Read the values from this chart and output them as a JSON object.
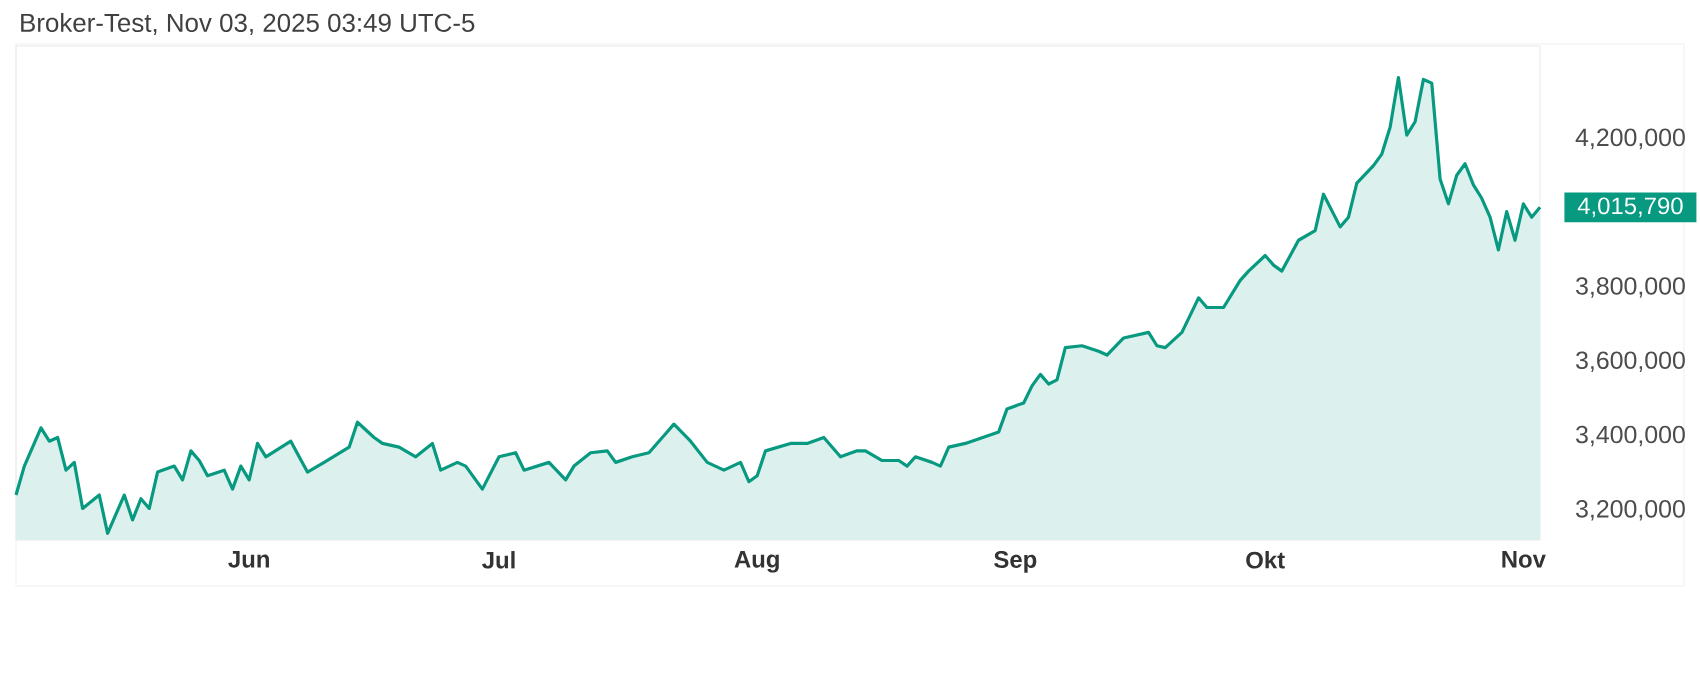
{
  "chart_data": {
    "type": "area",
    "title": "Broker-Test, Nov 03, 2025 03:49 UTC-5",
    "color": "#089981",
    "marker": "none",
    "line_style": "solid",
    "grid": false,
    "x": [
      "2025-05-04",
      "2025-05-05",
      "2025-05-07",
      "2025-05-08",
      "2025-05-09",
      "2025-05-10",
      "2025-05-11",
      "2025-05-12",
      "2025-05-14",
      "2025-05-15",
      "2025-05-17",
      "2025-05-18",
      "2025-05-19",
      "2025-05-20",
      "2025-05-21",
      "2025-05-23",
      "2025-05-24",
      "2025-05-25",
      "2025-05-26",
      "2025-05-27",
      "2025-05-29",
      "2025-05-30",
      "2025-05-31",
      "2025-06-01",
      "2025-06-02",
      "2025-06-03",
      "2025-06-06",
      "2025-06-07",
      "2025-06-08",
      "2025-06-10",
      "2025-06-13",
      "2025-06-14",
      "2025-06-16",
      "2025-06-17",
      "2025-06-19",
      "2025-06-21",
      "2025-06-23",
      "2025-06-24",
      "2025-06-26",
      "2025-06-27",
      "2025-06-29",
      "2025-07-01",
      "2025-07-03",
      "2025-07-04",
      "2025-07-07",
      "2025-07-09",
      "2025-07-10",
      "2025-07-12",
      "2025-07-14",
      "2025-07-15",
      "2025-07-17",
      "2025-07-19",
      "2025-07-21",
      "2025-07-22",
      "2025-07-24",
      "2025-07-26",
      "2025-07-28",
      "2025-07-30",
      "2025-07-31",
      "2025-08-01",
      "2025-08-02",
      "2025-08-05",
      "2025-08-07",
      "2025-08-09",
      "2025-08-11",
      "2025-08-13",
      "2025-08-14",
      "2025-08-16",
      "2025-08-18",
      "2025-08-19",
      "2025-08-20",
      "2025-08-22",
      "2025-08-23",
      "2025-08-24",
      "2025-08-26",
      "2025-08-30",
      "2025-08-31",
      "2025-09-02",
      "2025-09-03",
      "2025-09-04",
      "2025-09-05",
      "2025-09-06",
      "2025-09-07",
      "2025-09-09",
      "2025-09-11",
      "2025-09-12",
      "2025-09-14",
      "2025-09-17",
      "2025-09-18",
      "2025-09-19",
      "2025-09-21",
      "2025-09-23",
      "2025-09-24",
      "2025-09-26",
      "2025-09-28",
      "2025-09-29",
      "2025-10-01",
      "2025-10-02",
      "2025-10-03",
      "2025-10-05",
      "2025-10-07",
      "2025-10-08",
      "2025-10-10",
      "2025-10-11",
      "2025-10-12",
      "2025-10-14",
      "2025-10-15",
      "2025-10-16",
      "2025-10-17",
      "2025-10-18",
      "2025-10-19",
      "2025-10-20",
      "2025-10-21",
      "2025-10-22",
      "2025-10-23",
      "2025-10-24",
      "2025-10-25",
      "2025-10-26",
      "2025-10-27",
      "2025-10-28",
      "2025-10-29",
      "2025-10-30",
      "2025-10-31",
      "2025-11-01",
      "2025-11-02",
      "2025-11-03"
    ],
    "values": [
      3241000,
      3319000,
      3422000,
      3386000,
      3396000,
      3308000,
      3329000,
      3205000,
      3241000,
      3138000,
      3241000,
      3174000,
      3231000,
      3205000,
      3303000,
      3319000,
      3282000,
      3360000,
      3334000,
      3293000,
      3308000,
      3257000,
      3319000,
      3282000,
      3380000,
      3344000,
      3386000,
      3344000,
      3303000,
      3329000,
      3370000,
      3437000,
      3396000,
      3380000,
      3370000,
      3344000,
      3380000,
      3308000,
      3329000,
      3319000,
      3257000,
      3344000,
      3355000,
      3308000,
      3329000,
      3282000,
      3319000,
      3355000,
      3360000,
      3329000,
      3344000,
      3355000,
      3406000,
      3432000,
      3386000,
      3329000,
      3308000,
      3329000,
      3277000,
      3293000,
      3360000,
      3380000,
      3380000,
      3396000,
      3344000,
      3360000,
      3360000,
      3334000,
      3334000,
      3319000,
      3344000,
      3329000,
      3319000,
      3370000,
      3380000,
      3411000,
      3473000,
      3489000,
      3535000,
      3566000,
      3540000,
      3551000,
      3638000,
      3643000,
      3628000,
      3618000,
      3664000,
      3679000,
      3643000,
      3638000,
      3679000,
      3772000,
      3746000,
      3746000,
      3819000,
      3844000,
      3886000,
      3860000,
      3844000,
      3927000,
      3953000,
      4051000,
      3963000,
      3989000,
      4081000,
      4128000,
      4159000,
      4231000,
      4365000,
      4210000,
      4246000,
      4360000,
      4350000,
      4092000,
      4025000,
      4102000,
      4133000,
      4076000,
      4040000,
      3989000,
      3901000,
      4004000,
      3927000,
      4025000,
      3989000,
      4015790
    ],
    "xlim": [
      "2025-05-04",
      "2025-11-03"
    ],
    "xticks": [
      {
        "value": "2025-06-01",
        "label": "Jun"
      },
      {
        "value": "2025-07-01",
        "label": "Jul"
      },
      {
        "value": "2025-08-01",
        "label": "Aug"
      },
      {
        "value": "2025-09-01",
        "label": "Sep"
      },
      {
        "value": "2025-10-01",
        "label": "Okt"
      },
      {
        "value": "2025-11-01",
        "label": "Nov"
      }
    ],
    "ylim": [
      3120000,
      4450000
    ],
    "yticks": [
      {
        "value": 3200000,
        "label": "3,200,000"
      },
      {
        "value": 3400000,
        "label": "3,400,000"
      },
      {
        "value": 3600000,
        "label": "3,600,000"
      },
      {
        "value": 3800000,
        "label": "3,800,000"
      },
      {
        "value": 4200000,
        "label": "4,200,000"
      }
    ],
    "annotations": [
      {
        "text": "4,015,790",
        "x": "2025-11-03",
        "y": 4015790
      }
    ]
  }
}
